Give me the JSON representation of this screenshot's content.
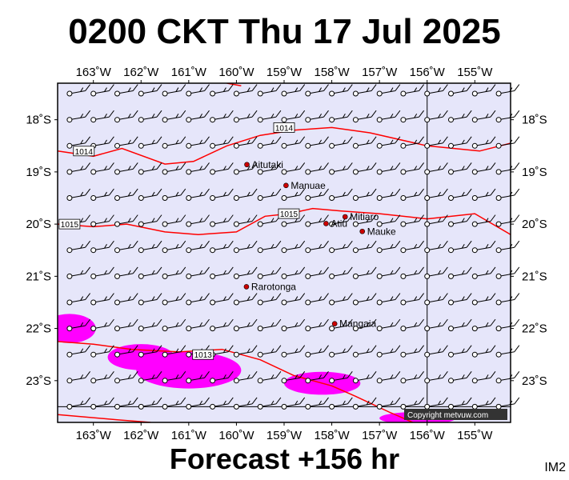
{
  "header": {
    "title": "0200 CKT Thu 17 Jul 2025"
  },
  "footer": {
    "forecast": "Forecast +156 hr",
    "code": "IM2",
    "copyright": "Copyright metvuw.com"
  },
  "colors": {
    "ocean": "#e6e6fa",
    "isobar": "#ff0000",
    "rain": "#ff00ff",
    "town": "#cc0000",
    "copyright_bg": "#333333"
  },
  "map": {
    "lon_labels": [
      "163˚W",
      "162˚W",
      "161˚W",
      "160˚W",
      "159˚W",
      "158˚W",
      "157˚W",
      "156˚W",
      "155˚W"
    ],
    "lat_labels": [
      "18˚S",
      "19˚S",
      "20˚S",
      "21˚S",
      "22˚S",
      "23˚S"
    ],
    "extent": {
      "lon_west": -163.75,
      "lon_east": -154.25,
      "lat_north": -17.3,
      "lat_south": -23.8
    },
    "places": [
      {
        "name": "Aitutaki",
        "lon": -159.78,
        "lat": -18.86
      },
      {
        "name": "Manuae",
        "lon": -158.96,
        "lat": -19.26
      },
      {
        "name": "Atiu",
        "lon": -158.12,
        "lat": -19.99
      },
      {
        "name": "Mitiaro",
        "lon": -157.72,
        "lat": -19.86
      },
      {
        "name": "Mauke",
        "lon": -157.36,
        "lat": -20.14
      },
      {
        "name": "Rarotonga",
        "lon": -159.79,
        "lat": -21.2
      },
      {
        "name": "Mangaia",
        "lon": -157.94,
        "lat": -21.91
      }
    ],
    "isobars": [
      {
        "label": "1014",
        "points": [
          [
            -163.75,
            -18.6
          ],
          [
            -163.0,
            -18.7
          ],
          [
            -162.4,
            -18.55
          ],
          [
            -161.5,
            -18.85
          ],
          [
            -160.9,
            -18.8
          ],
          [
            -160.2,
            -18.5
          ],
          [
            -159.5,
            -18.3
          ],
          [
            -158.8,
            -18.2
          ],
          [
            -158.0,
            -18.15
          ],
          [
            -157.2,
            -18.25
          ],
          [
            -156.0,
            -18.5
          ],
          [
            -154.9,
            -18.6
          ],
          [
            -154.25,
            -18.45
          ]
        ],
        "label_pos": [
          -163.2,
          -18.6
        ]
      },
      {
        "label": "1014",
        "points": [
          [
            -159.0,
            -18.2
          ]
        ],
        "label_pos": [
          -159.0,
          -18.15
        ]
      },
      {
        "label": "1015",
        "points": [
          [
            -163.75,
            -20.0
          ],
          [
            -163.0,
            -20.05
          ],
          [
            -162.3,
            -20.0
          ],
          [
            -161.5,
            -20.15
          ],
          [
            -160.8,
            -20.2
          ],
          [
            -160.0,
            -20.15
          ],
          [
            -159.4,
            -19.85
          ],
          [
            -158.9,
            -19.8
          ],
          [
            -158.4,
            -19.7
          ],
          [
            -157.8,
            -19.75
          ],
          [
            -157.0,
            -19.8
          ],
          [
            -156.0,
            -19.9
          ],
          [
            -155.0,
            -19.8
          ],
          [
            -154.25,
            -20.2
          ]
        ],
        "label_pos": [
          -158.9,
          -19.8
        ]
      },
      {
        "label": "1015",
        "points": [
          [
            -163.6,
            -20.0
          ]
        ],
        "label_pos": [
          -163.5,
          -20.0
        ]
      },
      {
        "label": "1013",
        "points": [
          [
            -163.75,
            -22.25
          ],
          [
            -163.0,
            -22.3
          ],
          [
            -162.2,
            -22.4
          ],
          [
            -161.2,
            -22.45
          ],
          [
            -160.3,
            -22.4
          ],
          [
            -159.5,
            -22.6
          ],
          [
            -158.8,
            -22.9
          ],
          [
            -158.0,
            -23.1
          ],
          [
            -157.5,
            -23.3
          ],
          [
            -156.8,
            -23.6
          ],
          [
            -156.3,
            -23.8
          ]
        ],
        "label_pos": [
          -160.7,
          -22.5
        ]
      },
      {
        "label": "",
        "points": [
          [
            -163.75,
            -23.65
          ],
          [
            -162.5,
            -23.75
          ],
          [
            -161.8,
            -23.8
          ]
        ],
        "label_pos": null
      },
      {
        "label": "",
        "points": [
          [
            -160.2,
            -17.3
          ],
          [
            -159.9,
            -17.35
          ]
        ],
        "label_pos": null
      }
    ],
    "rain_areas": [
      {
        "lon": -163.5,
        "lat": -22.0,
        "rx": 0.55,
        "ry": 0.28
      },
      {
        "lon": -161.0,
        "lat": -22.8,
        "rx": 1.1,
        "ry": 0.35
      },
      {
        "lon": -162.0,
        "lat": -22.55,
        "rx": 0.7,
        "ry": 0.25
      },
      {
        "lon": -158.2,
        "lat": -23.05,
        "rx": 0.8,
        "ry": 0.22
      },
      {
        "lon": -156.2,
        "lat": -23.72,
        "rx": 0.8,
        "ry": 0.12
      }
    ],
    "wind_grid": {
      "lon_start": -163.5,
      "lon_step": 0.5,
      "lon_count": 19,
      "lat_start": -17.5,
      "lat_step": -0.5,
      "lat_count": 13,
      "heading_deg": 80
    }
  }
}
